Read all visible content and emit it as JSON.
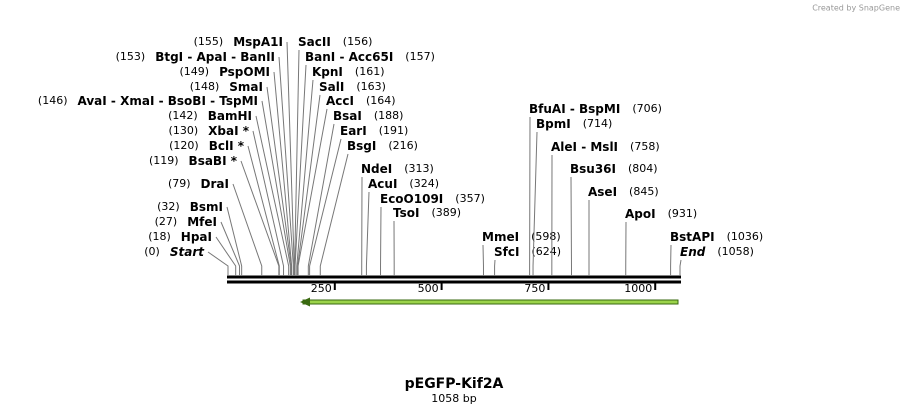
{
  "header": {
    "credit": "Created by SnapGene"
  },
  "map": {
    "title": "pEGFP-Kif2A",
    "subtitle": "1058 bp",
    "ruler_ticks": [
      250,
      500,
      750,
      1000
    ],
    "sites_left": [
      {
        "names": [
          "MspA1I"
        ],
        "position": {
          "value": 155,
          "label": "(155)"
        }
      },
      {
        "names": [
          "BtgI",
          "ApaI",
          "BanII"
        ],
        "position": {
          "value": 153,
          "label": "(153)"
        }
      },
      {
        "names": [
          "PspOMI"
        ],
        "position": {
          "value": 149,
          "label": "(149)"
        }
      },
      {
        "names": [
          "SmaI"
        ],
        "position": {
          "value": 148,
          "label": "(148)"
        }
      },
      {
        "names": [
          "AvaI",
          "XmaI",
          "BsoBI",
          "TspMI"
        ],
        "position": {
          "value": 146,
          "label": "(146)"
        }
      },
      {
        "names": [
          "BamHI"
        ],
        "position": {
          "value": 142,
          "label": "(142)"
        }
      },
      {
        "names": [
          "XbaI *"
        ],
        "position": {
          "value": 130,
          "label": "(130)"
        }
      },
      {
        "names": [
          "BclI *"
        ],
        "position": {
          "value": 120,
          "label": "(120)"
        }
      },
      {
        "names": [
          "BsaBI *"
        ],
        "position": {
          "value": 119,
          "label": "(119)"
        }
      },
      {
        "names": [
          "DraI"
        ],
        "position": {
          "value": 79,
          "label": "(79)"
        }
      },
      {
        "names": [
          "BsmI"
        ],
        "position": {
          "value": 32,
          "label": "(32)"
        }
      },
      {
        "names": [
          "MfeI"
        ],
        "position": {
          "value": 27,
          "label": "(27)"
        }
      },
      {
        "names": [
          "HpaI"
        ],
        "position": {
          "value": 18,
          "label": "(18)"
        }
      },
      {
        "names": [
          "Start"
        ],
        "position": {
          "value": 0,
          "label": "(0)"
        }
      }
    ],
    "sites_right": [
      {
        "names": [
          "SacII"
        ],
        "position": {
          "value": 156,
          "label": "(156)"
        }
      },
      {
        "names": [
          "BanI",
          "Acc65I"
        ],
        "position": {
          "value": 157,
          "label": "(157)"
        }
      },
      {
        "names": [
          "KpnI"
        ],
        "position": {
          "value": 161,
          "label": "(161)"
        }
      },
      {
        "names": [
          "SalI"
        ],
        "position": {
          "value": 163,
          "label": "(163)"
        }
      },
      {
        "names": [
          "AccI"
        ],
        "position": {
          "value": 164,
          "label": "(164)"
        }
      },
      {
        "names": [
          "BsaI"
        ],
        "position": {
          "value": 188,
          "label": "(188)"
        }
      },
      {
        "names": [
          "EarI"
        ],
        "position": {
          "value": 191,
          "label": "(191)"
        }
      },
      {
        "names": [
          "BsgI"
        ],
        "position": {
          "value": 216,
          "label": "(216)"
        }
      },
      {
        "names": [
          "NdeI"
        ],
        "position": {
          "value": 313,
          "label": "(313)"
        }
      },
      {
        "names": [
          "AcuI"
        ],
        "position": {
          "value": 324,
          "label": "(324)"
        }
      },
      {
        "names": [
          "EcoO109I"
        ],
        "position": {
          "value": 357,
          "label": "(357)"
        }
      },
      {
        "names": [
          "TsoI"
        ],
        "position": {
          "value": 389,
          "label": "(389)"
        }
      },
      {
        "names": [
          "MmeI"
        ],
        "position": {
          "value": 598,
          "label": "(598)"
        }
      },
      {
        "names": [
          "SfcI"
        ],
        "position": {
          "value": 624,
          "label": "(624)"
        }
      },
      {
        "names": [
          "BfuAI",
          "BspMI"
        ],
        "position": {
          "value": 706,
          "label": "(706)"
        }
      },
      {
        "names": [
          "BpmI"
        ],
        "position": {
          "value": 714,
          "label": "(714)"
        }
      },
      {
        "names": [
          "AleI",
          "MslI"
        ],
        "position": {
          "value": 758,
          "label": "(758)"
        }
      },
      {
        "names": [
          "Bsu36I"
        ],
        "position": {
          "value": 804,
          "label": "(804)"
        }
      },
      {
        "names": [
          "AseI"
        ],
        "position": {
          "value": 845,
          "label": "(845)"
        }
      },
      {
        "names": [
          "ApoI"
        ],
        "position": {
          "value": 931,
          "label": "(931)"
        }
      },
      {
        "names": [
          "BstAPI"
        ],
        "position": {
          "value": 1036,
          "label": "(1036)"
        }
      },
      {
        "names": [
          "End"
        ],
        "position": {
          "value": 1058,
          "label": "(1058)"
        }
      }
    ]
  }
}
